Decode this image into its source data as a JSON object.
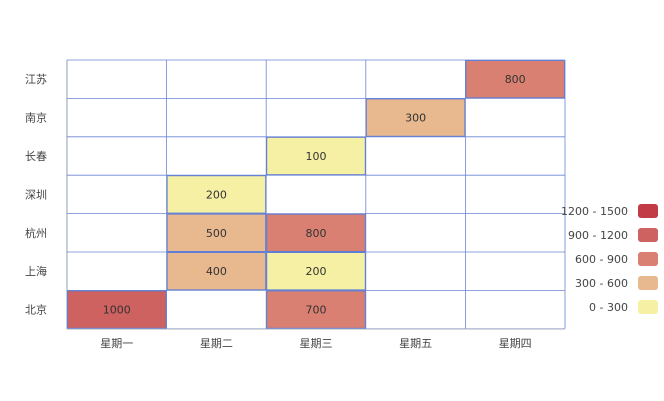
{
  "chart_data": {
    "type": "heatmap",
    "x_categories": [
      "星期一",
      "星期二",
      "星期三",
      "星期五",
      "星期四"
    ],
    "y_categories": [
      "北京",
      "上海",
      "杭州",
      "深圳",
      "长春",
      "南京",
      "江苏"
    ],
    "cells": [
      {
        "x": "星期一",
        "y": "北京",
        "value": 1000
      },
      {
        "x": "星期三",
        "y": "北京",
        "value": 700
      },
      {
        "x": "星期二",
        "y": "上海",
        "value": 400
      },
      {
        "x": "星期三",
        "y": "上海",
        "value": 200
      },
      {
        "x": "星期二",
        "y": "杭州",
        "value": 500
      },
      {
        "x": "星期三",
        "y": "杭州",
        "value": 800
      },
      {
        "x": "星期二",
        "y": "深圳",
        "value": 200
      },
      {
        "x": "星期三",
        "y": "长春",
        "value": 100
      },
      {
        "x": "星期五",
        "y": "南京",
        "value": 300
      },
      {
        "x": "星期四",
        "y": "江苏",
        "value": 800
      }
    ],
    "legend": {
      "position": "right-bottom",
      "pieces": [
        {
          "label": "1200 - 1500",
          "min": 1200,
          "max": 1500,
          "color": "#c23c45"
        },
        {
          "label": "900 - 1200",
          "min": 900,
          "max": 1200,
          "color": "#cd6260"
        },
        {
          "label": "600 - 900",
          "min": 600,
          "max": 900,
          "color": "#d98072"
        },
        {
          "label": "300 - 600",
          "min": 300,
          "max": 600,
          "color": "#e8b88f"
        },
        {
          "label": "0 - 300",
          "min": 0,
          "max": 300,
          "color": "#f5f0a3"
        }
      ]
    },
    "grid": true,
    "grid_color": "#6b85d6",
    "axis_color": "#cccccc"
  }
}
